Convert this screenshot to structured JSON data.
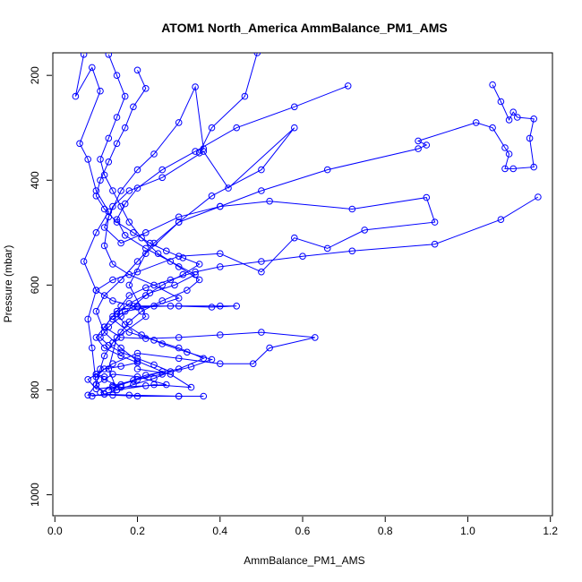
{
  "chart_data": {
    "type": "line",
    "title": "ATOM1 North_America AmmBalance_PM1_AMS",
    "xlabel": "AmmBalance_PM1_AMS",
    "ylabel": "Pressure (mbar)",
    "xlim": [
      -0.005,
      1.205
    ],
    "ylim": [
      1040,
      157
    ],
    "y_reversed": true,
    "x_ticks": [
      0.0,
      0.2,
      0.4,
      0.6,
      0.8,
      1.0,
      1.2
    ],
    "x_tick_labels": [
      "0.0",
      "0.2",
      "0.4",
      "0.6",
      "0.8",
      "1.0",
      "1.2"
    ],
    "y_ticks": [
      200,
      400,
      600,
      800,
      1000
    ],
    "y_tick_labels": [
      "200",
      "400",
      "600",
      "800",
      "1000"
    ],
    "grid": false,
    "legend": "none",
    "color": "#0000ff",
    "marker": "open-circle",
    "series": [
      {
        "points": [
          [
            0.07,
            160
          ],
          [
            0.05,
            240
          ],
          [
            0.09,
            185
          ],
          [
            0.11,
            230
          ],
          [
            0.06,
            330
          ],
          [
            0.08,
            360
          ],
          [
            0.1,
            420
          ],
          [
            0.13,
            460
          ],
          [
            0.1,
            500
          ],
          [
            0.07,
            555
          ],
          [
            0.1,
            610
          ],
          [
            0.08,
            665
          ],
          [
            0.09,
            720
          ],
          [
            0.1,
            790
          ],
          [
            0.08,
            810
          ],
          [
            0.14,
            810
          ],
          [
            0.2,
            812
          ],
          [
            0.3,
            812
          ],
          [
            0.36,
            812
          ],
          [
            0.3,
            812
          ],
          [
            0.18,
            810
          ],
          [
            0.12,
            808
          ],
          [
            0.1,
            790
          ],
          [
            0.14,
            770
          ],
          [
            0.2,
            775
          ],
          [
            0.27,
            790
          ],
          [
            0.22,
            792
          ],
          [
            0.16,
            795
          ],
          [
            0.12,
            780
          ],
          [
            0.1,
            770
          ],
          [
            0.14,
            750
          ],
          [
            0.2,
            730
          ],
          [
            0.3,
            740
          ],
          [
            0.4,
            750
          ],
          [
            0.48,
            750
          ],
          [
            0.52,
            720
          ],
          [
            0.63,
            700
          ],
          [
            0.5,
            690
          ],
          [
            0.4,
            695
          ],
          [
            0.3,
            700
          ],
          [
            0.22,
            702
          ],
          [
            0.16,
            700
          ],
          [
            0.12,
            680
          ],
          [
            0.15,
            650
          ],
          [
            0.2,
            640
          ],
          [
            0.3,
            640
          ],
          [
            0.4,
            640
          ],
          [
            0.44,
            640
          ],
          [
            0.38,
            642
          ],
          [
            0.28,
            640
          ],
          [
            0.2,
            642
          ],
          [
            0.14,
            630
          ],
          [
            0.1,
            610
          ],
          [
            0.14,
            590
          ],
          [
            0.2,
            575
          ],
          [
            0.3,
            545
          ],
          [
            0.4,
            540
          ],
          [
            0.5,
            575
          ],
          [
            0.58,
            510
          ],
          [
            0.66,
            530
          ],
          [
            0.75,
            495
          ],
          [
            0.92,
            480
          ],
          [
            0.9,
            433
          ],
          [
            0.72,
            455
          ],
          [
            0.52,
            440
          ],
          [
            0.4,
            450
          ],
          [
            0.3,
            470
          ],
          [
            0.22,
            500
          ],
          [
            0.16,
            520
          ],
          [
            0.12,
            490
          ],
          [
            0.14,
            450
          ],
          [
            0.18,
            420
          ],
          [
            0.26,
            395
          ],
          [
            0.36,
            345
          ],
          [
            0.42,
            415
          ],
          [
            0.58,
            300
          ],
          [
            0.5,
            380
          ],
          [
            0.38,
            430
          ],
          [
            0.3,
            480
          ],
          [
            0.22,
            540
          ],
          [
            0.18,
            600
          ],
          [
            0.22,
            660
          ],
          [
            0.15,
            700
          ],
          [
            0.13,
            760
          ],
          [
            0.15,
            800
          ],
          [
            0.24,
            790
          ],
          [
            0.33,
            795
          ],
          [
            0.28,
            770
          ],
          [
            0.2,
            760
          ]
        ]
      },
      {
        "points": [
          [
            1.06,
            218
          ],
          [
            1.08,
            250
          ],
          [
            1.1,
            285
          ],
          [
            1.11,
            270
          ],
          [
            1.12,
            280
          ],
          [
            1.16,
            283
          ],
          [
            1.15,
            320
          ],
          [
            1.16,
            375
          ],
          [
            1.11,
            378
          ],
          [
            1.09,
            378
          ],
          [
            1.1,
            350
          ],
          [
            1.09,
            338
          ],
          [
            1.06,
            300
          ],
          [
            1.02,
            290
          ],
          [
            0.88,
            325
          ],
          [
            0.9,
            333
          ],
          [
            0.88,
            340
          ],
          [
            0.66,
            380
          ],
          [
            0.5,
            420
          ],
          [
            0.4,
            450
          ],
          [
            0.3,
            480
          ],
          [
            0.24,
            520
          ],
          [
            0.2,
            555
          ],
          [
            0.16,
            590
          ],
          [
            0.12,
            620
          ],
          [
            0.1,
            650
          ],
          [
            0.12,
            690
          ],
          [
            0.16,
            720
          ],
          [
            0.2,
            745
          ],
          [
            0.26,
            765
          ],
          [
            0.2,
            780
          ],
          [
            0.14,
            795
          ],
          [
            0.1,
            798
          ],
          [
            0.08,
            780
          ],
          [
            0.1,
            770
          ],
          [
            0.12,
            775
          ]
        ]
      },
      {
        "points": [
          [
            1.17,
            432
          ],
          [
            1.08,
            475
          ],
          [
            0.92,
            522
          ],
          [
            0.72,
            535
          ],
          [
            0.6,
            545
          ],
          [
            0.5,
            555
          ],
          [
            0.4,
            565
          ],
          [
            0.34,
            575
          ],
          [
            0.28,
            590
          ],
          [
            0.22,
            605
          ],
          [
            0.18,
            620
          ],
          [
            0.16,
            640
          ],
          [
            0.14,
            660
          ],
          [
            0.12,
            680
          ],
          [
            0.1,
            700
          ],
          [
            0.12,
            720
          ],
          [
            0.16,
            735
          ],
          [
            0.2,
            748
          ],
          [
            0.16,
            755
          ],
          [
            0.12,
            760
          ],
          [
            0.1,
            775
          ]
        ]
      },
      {
        "points": [
          [
            0.49,
            157
          ],
          [
            0.46,
            240
          ],
          [
            0.38,
            300
          ],
          [
            0.35,
            348
          ],
          [
            0.36,
            340
          ],
          [
            0.34,
            222
          ],
          [
            0.3,
            290
          ],
          [
            0.24,
            350
          ],
          [
            0.2,
            380
          ],
          [
            0.16,
            420
          ],
          [
            0.13,
            470
          ],
          [
            0.12,
            525
          ],
          [
            0.14,
            560
          ],
          [
            0.18,
            580
          ],
          [
            0.24,
            600
          ],
          [
            0.3,
            625
          ],
          [
            0.24,
            640
          ],
          [
            0.17,
            650
          ],
          [
            0.14,
            665
          ],
          [
            0.18,
            690
          ],
          [
            0.24,
            705
          ],
          [
            0.3,
            720
          ],
          [
            0.36,
            740
          ],
          [
            0.3,
            760
          ],
          [
            0.22,
            772
          ],
          [
            0.16,
            790
          ],
          [
            0.13,
            800
          ]
        ]
      },
      {
        "points": [
          [
            0.13,
            160
          ],
          [
            0.15,
            200
          ],
          [
            0.17,
            240
          ],
          [
            0.15,
            280
          ],
          [
            0.13,
            320
          ],
          [
            0.11,
            360
          ],
          [
            0.12,
            390
          ],
          [
            0.14,
            420
          ],
          [
            0.16,
            450
          ],
          [
            0.18,
            480
          ],
          [
            0.21,
            510
          ],
          [
            0.25,
            540
          ],
          [
            0.3,
            565
          ],
          [
            0.35,
            590
          ],
          [
            0.32,
            610
          ],
          [
            0.26,
            630
          ],
          [
            0.21,
            650
          ],
          [
            0.18,
            670
          ],
          [
            0.16,
            690
          ],
          [
            0.14,
            710
          ],
          [
            0.12,
            735
          ],
          [
            0.11,
            760
          ],
          [
            0.1,
            790
          ]
        ]
      },
      {
        "points": [
          [
            0.71,
            220
          ],
          [
            0.58,
            260
          ],
          [
            0.44,
            300
          ],
          [
            0.34,
            345
          ],
          [
            0.26,
            380
          ],
          [
            0.2,
            415
          ],
          [
            0.17,
            445
          ],
          [
            0.15,
            475
          ],
          [
            0.17,
            505
          ],
          [
            0.22,
            530
          ],
          [
            0.28,
            555
          ],
          [
            0.34,
            580
          ],
          [
            0.29,
            600
          ],
          [
            0.23,
            615
          ],
          [
            0.18,
            635
          ],
          [
            0.15,
            655
          ],
          [
            0.17,
            675
          ],
          [
            0.21,
            695
          ],
          [
            0.26,
            712
          ],
          [
            0.32,
            728
          ],
          [
            0.38,
            742
          ],
          [
            0.33,
            756
          ],
          [
            0.26,
            770
          ],
          [
            0.19,
            782
          ],
          [
            0.14,
            792
          ],
          [
            0.11,
            805
          ]
        ]
      },
      {
        "points": [
          [
            0.2,
            190
          ],
          [
            0.22,
            225
          ],
          [
            0.19,
            260
          ],
          [
            0.17,
            300
          ],
          [
            0.15,
            330
          ],
          [
            0.13,
            365
          ],
          [
            0.11,
            400
          ],
          [
            0.1,
            430
          ],
          [
            0.12,
            455
          ],
          [
            0.15,
            480
          ],
          [
            0.19,
            500
          ],
          [
            0.23,
            520
          ],
          [
            0.27,
            535
          ],
          [
            0.31,
            548
          ],
          [
            0.35,
            560
          ],
          [
            0.31,
            580
          ],
          [
            0.26,
            600
          ],
          [
            0.22,
            620
          ],
          [
            0.19,
            640
          ],
          [
            0.16,
            660
          ],
          [
            0.13,
            680
          ],
          [
            0.11,
            700
          ],
          [
            0.13,
            715
          ],
          [
            0.16,
            728
          ],
          [
            0.2,
            740
          ],
          [
            0.24,
            752
          ],
          [
            0.28,
            765
          ],
          [
            0.24,
            778
          ],
          [
            0.19,
            790
          ],
          [
            0.15,
            800
          ],
          [
            0.12,
            808
          ],
          [
            0.09,
            812
          ]
        ]
      }
    ]
  }
}
